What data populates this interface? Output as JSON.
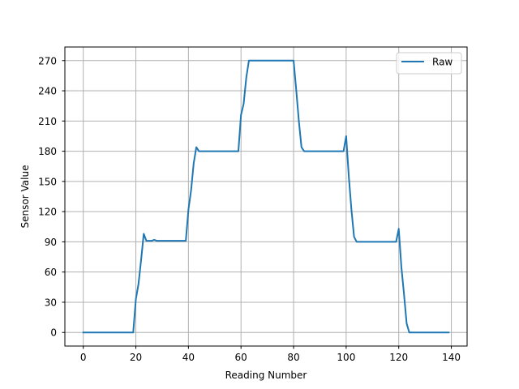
{
  "chart_data": {
    "type": "line",
    "xlabel": "Reading Number",
    "ylabel": "Sensor Value",
    "xlim": [
      -7,
      146
    ],
    "ylim": [
      -13.5,
      283.5
    ],
    "xticks": [
      0,
      20,
      40,
      60,
      80,
      100,
      120,
      140
    ],
    "yticks": [
      0,
      30,
      60,
      90,
      120,
      150,
      180,
      210,
      240,
      270
    ],
    "grid": true,
    "legend": {
      "placement": "top-right"
    },
    "series": [
      {
        "name": "Raw",
        "color": "#1f77b4",
        "x": [
          0,
          1,
          2,
          3,
          4,
          5,
          6,
          7,
          8,
          9,
          10,
          11,
          12,
          13,
          14,
          15,
          16,
          17,
          18,
          19,
          20,
          21,
          22,
          23,
          24,
          25,
          26,
          27,
          28,
          29,
          30,
          31,
          32,
          33,
          34,
          35,
          36,
          37,
          38,
          39,
          40,
          41,
          42,
          43,
          44,
          45,
          46,
          47,
          48,
          49,
          50,
          51,
          52,
          53,
          54,
          55,
          56,
          57,
          58,
          59,
          60,
          61,
          62,
          63,
          64,
          65,
          66,
          67,
          68,
          69,
          70,
          71,
          72,
          73,
          74,
          75,
          76,
          77,
          78,
          79,
          80,
          81,
          82,
          83,
          84,
          85,
          86,
          87,
          88,
          89,
          90,
          91,
          92,
          93,
          94,
          95,
          96,
          97,
          98,
          99,
          100,
          101,
          102,
          103,
          104,
          105,
          106,
          107,
          108,
          109,
          110,
          111,
          112,
          113,
          114,
          115,
          116,
          117,
          118,
          119,
          120,
          121,
          122,
          123,
          124,
          125,
          126,
          127,
          128,
          129,
          130,
          131,
          132,
          133,
          134,
          135,
          136,
          137,
          138,
          139
        ],
        "y": [
          0,
          0,
          0,
          0,
          0,
          0,
          0,
          0,
          0,
          0,
          0,
          0,
          0,
          0,
          0,
          0,
          0,
          0,
          0,
          0,
          33,
          48,
          72,
          98,
          91,
          91,
          91,
          92,
          91,
          91,
          91,
          91,
          91,
          91,
          91,
          91,
          91,
          91,
          91,
          91,
          122,
          141,
          168,
          184,
          180,
          180,
          180,
          180,
          180,
          180,
          180,
          180,
          180,
          180,
          180,
          180,
          180,
          180,
          180,
          180,
          216,
          227,
          253,
          270,
          270,
          270,
          270,
          270,
          270,
          270,
          270,
          270,
          270,
          270,
          270,
          270,
          270,
          270,
          270,
          270,
          270,
          241,
          210,
          184,
          180,
          180,
          180,
          180,
          180,
          180,
          180,
          180,
          180,
          180,
          180,
          180,
          180,
          180,
          180,
          180,
          195,
          155,
          122,
          95,
          90,
          90,
          90,
          90,
          90,
          90,
          90,
          90,
          90,
          90,
          90,
          90,
          90,
          90,
          90,
          90,
          103,
          65,
          38,
          9,
          0,
          0,
          0,
          0,
          0,
          0,
          0,
          0,
          0,
          0,
          0,
          0,
          0,
          0,
          0,
          0
        ]
      }
    ]
  }
}
